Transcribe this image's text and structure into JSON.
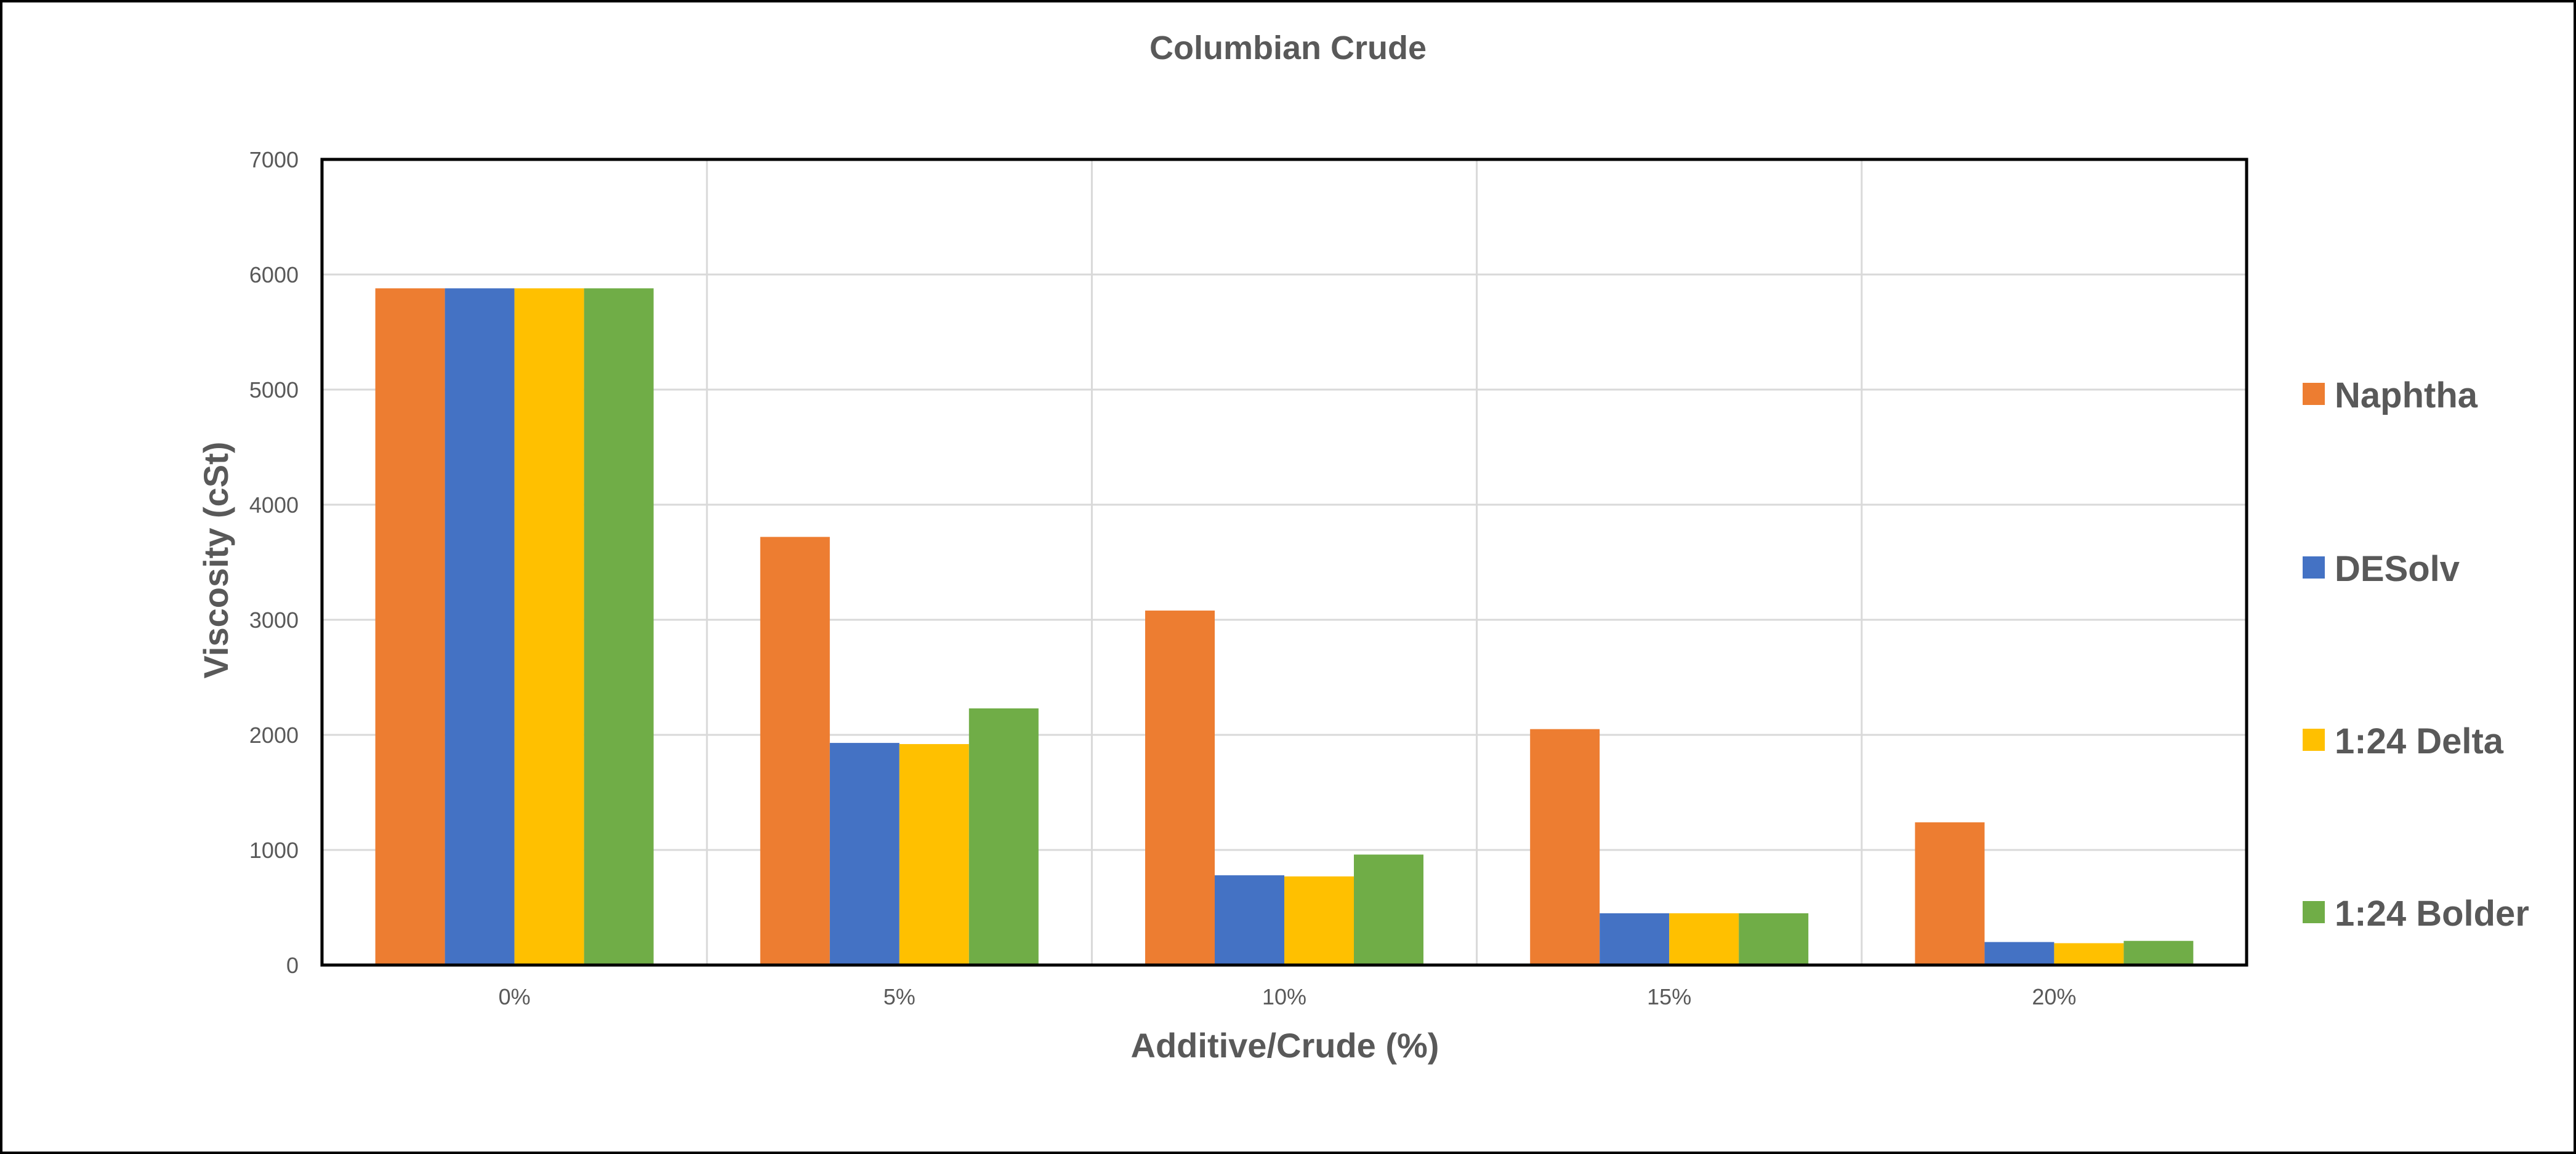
{
  "chart_data": {
    "type": "bar",
    "title": "Columbian Crude",
    "xlabel": "Additive/Crude (%)",
    "ylabel": "Viscosity (cSt)",
    "categories": [
      "0%",
      "5%",
      "10%",
      "15%",
      "20%"
    ],
    "ylim": [
      0,
      7000
    ],
    "yticks": [
      0,
      1000,
      2000,
      3000,
      4000,
      5000,
      6000,
      7000
    ],
    "grid": true,
    "legend_position": "right",
    "series": [
      {
        "name": "Naphtha",
        "color": "#ED7D31",
        "values": [
          5880,
          3720,
          3080,
          2050,
          1240
        ]
      },
      {
        "name": "DESolv",
        "color": "#4472C4",
        "values": [
          5880,
          1930,
          780,
          450,
          200
        ]
      },
      {
        "name": "1:24 Delta",
        "color": "#FFC000",
        "values": [
          5880,
          1920,
          770,
          450,
          190
        ]
      },
      {
        "name": "1:24 Bolder",
        "color": "#70AD47",
        "values": [
          5880,
          2230,
          960,
          450,
          210
        ]
      }
    ]
  }
}
